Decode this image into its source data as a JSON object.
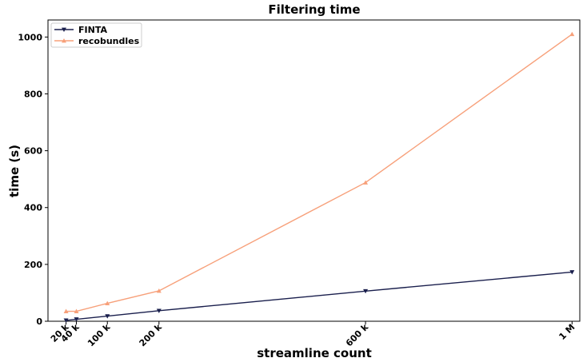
{
  "chart_data": {
    "type": "line",
    "title": "Filtering time",
    "xlabel": "streamline count",
    "ylabel": "time (s)",
    "x": [
      20000,
      40000,
      100000,
      200000,
      600000,
      1000000
    ],
    "x_tick_values": [
      20000,
      40000,
      100000,
      200000,
      600000,
      1000000
    ],
    "x_tick_labels": [
      "20 k",
      "40 k",
      "100 k",
      "200 k",
      "600 k",
      "1 M"
    ],
    "y_tick_values": [
      0,
      200,
      400,
      600,
      800,
      1000
    ],
    "y_tick_labels": [
      "0",
      "200",
      "400",
      "600",
      "800",
      "1000"
    ],
    "xlim": [
      -15000,
      1015000
    ],
    "ylim": [
      0,
      1060
    ],
    "grid": false,
    "legend_position": "top-left",
    "series": [
      {
        "name": "FINTA",
        "color": "#1a1f4d",
        "marker": "triangle-down",
        "values": [
          3,
          7,
          18,
          37,
          106,
          173
        ]
      },
      {
        "name": "recobundles",
        "color": "#f7a07a",
        "marker": "triangle-up",
        "values": [
          35,
          35,
          63,
          107,
          488,
          1010
        ]
      }
    ]
  }
}
